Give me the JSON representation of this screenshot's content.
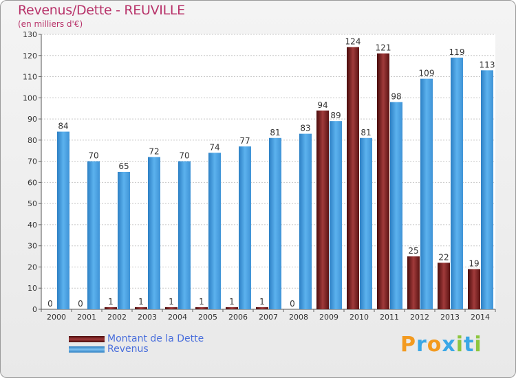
{
  "header": {
    "title": "Revenus/Dette - REUVILLE",
    "subtitle": "(en milliers d'€)"
  },
  "colors": {
    "title": "#b8336a",
    "debt": "#7a1f1f",
    "revenue": "#4ea3e2",
    "legend_text": "#4a6fdc"
  },
  "legend": {
    "debt_label": "Montant de la Dette",
    "revenue_label": "Revenus"
  },
  "logo": {
    "text": "Proxiti",
    "letter_colors": [
      "#f39a1f",
      "#3aa7e6",
      "#f39a1f",
      "#3aa7e6",
      "#8dc63f",
      "#3aa7e6",
      "#8dc63f"
    ]
  },
  "chart_data": {
    "type": "bar",
    "categories": [
      "2000",
      "2001",
      "2002",
      "2003",
      "2004",
      "2005",
      "2006",
      "2007",
      "2008",
      "2009",
      "2010",
      "2011",
      "2012",
      "2013",
      "2014"
    ],
    "series": [
      {
        "name": "Montant de la Dette",
        "values": [
          0,
          0,
          1,
          1,
          1,
          1,
          1,
          1,
          0,
          94,
          124,
          121,
          25,
          22,
          19
        ]
      },
      {
        "name": "Revenus",
        "values": [
          84,
          70,
          65,
          72,
          70,
          74,
          77,
          81,
          83,
          89,
          81,
          98,
          109,
          119,
          113
        ]
      }
    ],
    "ylim": [
      0,
      130
    ],
    "yticks": [
      0,
      10,
      20,
      30,
      40,
      50,
      60,
      70,
      80,
      90,
      100,
      110,
      120,
      130
    ],
    "grid": true,
    "legend_position": "bottom-left"
  }
}
